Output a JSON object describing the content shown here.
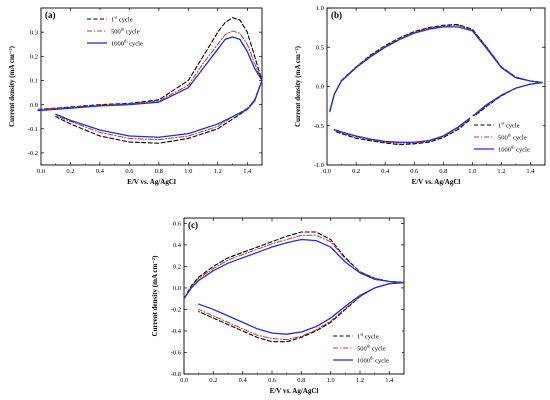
{
  "chart_data": [
    {
      "type": "line",
      "panel_label": "(a)",
      "xlabel": "E/V vs. Ag/AgCl",
      "ylabel": "Current density (mA cm⁻²)",
      "xlim": [
        0.0,
        1.5
      ],
      "ylim": [
        -0.25,
        0.4
      ],
      "xticks": [
        0.0,
        0.2,
        0.4,
        0.6,
        0.8,
        1.0,
        1.2,
        1.4
      ],
      "xtick_labels": [
        "0.0",
        "0.2",
        "0.4",
        "0.6",
        "0.8",
        "1.0",
        "1.2",
        "1.4"
      ],
      "yticks": [
        -0.2,
        -0.1,
        0.0,
        0.1,
        0.2,
        0.3
      ],
      "ytick_labels": [
        "-0.2",
        "-0.1",
        "0.0",
        "0.1",
        "0.2",
        "0.3"
      ],
      "grid": false,
      "legend_position": "top-left",
      "series": [
        {
          "name": "1st cycle",
          "legend_main": "1",
          "legend_sup": "st",
          "legend_tail": " cycle",
          "color": "#000000",
          "dash": "4,2.5",
          "stroke_width": 1.1,
          "x": [
            -0.02,
            0.2,
            0.4,
            0.6,
            0.8,
            1.0,
            1.1,
            1.2,
            1.25,
            1.3,
            1.35,
            1.4,
            1.45,
            1.5,
            1.45,
            1.4,
            1.3,
            1.2,
            1.0,
            0.8,
            0.6,
            0.4,
            0.2,
            0.1
          ],
          "y": [
            -0.02,
            -0.01,
            0.0,
            0.005,
            0.02,
            0.1,
            0.2,
            0.3,
            0.34,
            0.36,
            0.35,
            0.3,
            0.2,
            0.1,
            0.02,
            -0.02,
            -0.06,
            -0.1,
            -0.14,
            -0.16,
            -0.155,
            -0.13,
            -0.08,
            -0.05
          ]
        },
        {
          "name": "500th cycle",
          "legend_main": "500",
          "legend_sup": "th",
          "legend_tail": " cycle",
          "color": "#c0392b",
          "dash": "5,2,1.2,2",
          "stroke_width": 1.0,
          "x": [
            -0.02,
            0.2,
            0.4,
            0.6,
            0.8,
            1.0,
            1.1,
            1.2,
            1.25,
            1.3,
            1.35,
            1.4,
            1.45,
            1.5,
            1.45,
            1.4,
            1.3,
            1.2,
            1.0,
            0.8,
            0.6,
            0.4,
            0.2,
            0.1
          ],
          "y": [
            -0.02,
            -0.012,
            -0.002,
            0.003,
            0.015,
            0.08,
            0.17,
            0.25,
            0.29,
            0.305,
            0.295,
            0.25,
            0.17,
            0.1,
            0.02,
            -0.015,
            -0.05,
            -0.09,
            -0.13,
            -0.145,
            -0.14,
            -0.115,
            -0.07,
            -0.045
          ]
        },
        {
          "name": "1000th cycle",
          "legend_main": "1000",
          "legend_sup": "th",
          "legend_tail": " cycle",
          "color": "#1f2fd6",
          "dash": "",
          "stroke_width": 1.3,
          "x": [
            -0.02,
            0.2,
            0.4,
            0.6,
            0.8,
            1.0,
            1.1,
            1.2,
            1.25,
            1.3,
            1.35,
            1.4,
            1.45,
            1.5,
            1.45,
            1.4,
            1.3,
            1.2,
            1.0,
            0.8,
            0.6,
            0.4,
            0.2,
            0.1
          ],
          "y": [
            -0.025,
            -0.015,
            -0.005,
            0.0,
            0.01,
            0.07,
            0.15,
            0.23,
            0.27,
            0.28,
            0.27,
            0.22,
            0.15,
            0.1,
            0.015,
            -0.02,
            -0.05,
            -0.08,
            -0.12,
            -0.135,
            -0.13,
            -0.105,
            -0.065,
            -0.04
          ]
        }
      ]
    },
    {
      "type": "line",
      "panel_label": "(b)",
      "xlabel": "E/V vs. Ag/AgCl",
      "ylabel": "Current density (mA cm⁻²)",
      "xlim": [
        0.0,
        1.5
      ],
      "ylim": [
        -1.0,
        1.0
      ],
      "xticks": [
        0.0,
        0.2,
        0.4,
        0.6,
        0.8,
        1.0,
        1.2,
        1.4
      ],
      "xtick_labels": [
        "0.0",
        "0.2",
        "0.4",
        "0.6",
        "0.8",
        "1.0",
        "1.2",
        "1.4"
      ],
      "yticks": [
        -1.0,
        -0.5,
        0.0,
        0.5,
        1.0
      ],
      "ytick_labels": [
        "-1.0",
        "-0.5",
        "0.0",
        "0.5",
        "1.0"
      ],
      "grid": false,
      "legend_position": "bottom-right",
      "series": [
        {
          "name": "1st cycle",
          "legend_main": "1",
          "legend_sup": "st",
          "legend_tail": " cycle",
          "color": "#000000",
          "dash": "4,2.5",
          "stroke_width": 1.1,
          "x": [
            0.02,
            0.05,
            0.1,
            0.2,
            0.3,
            0.4,
            0.5,
            0.6,
            0.7,
            0.8,
            0.9,
            1.0,
            1.1,
            1.2,
            1.3,
            1.4,
            1.48,
            1.4,
            1.3,
            1.2,
            1.1,
            1.0,
            0.9,
            0.8,
            0.7,
            0.6,
            0.5,
            0.4,
            0.3,
            0.2,
            0.1,
            0.05
          ],
          "y": [
            -0.32,
            -0.1,
            0.08,
            0.25,
            0.4,
            0.52,
            0.62,
            0.7,
            0.75,
            0.78,
            0.79,
            0.73,
            0.5,
            0.25,
            0.12,
            0.07,
            0.05,
            0.03,
            -0.02,
            -0.12,
            -0.25,
            -0.4,
            -0.55,
            -0.65,
            -0.71,
            -0.73,
            -0.74,
            -0.72,
            -0.69,
            -0.66,
            -0.6,
            -0.57
          ]
        },
        {
          "name": "500th cycle",
          "legend_main": "500",
          "legend_sup": "th",
          "legend_tail": " cycle",
          "color": "#c0392b",
          "dash": "5,2,1.2,2",
          "stroke_width": 1.0,
          "x": [
            0.02,
            0.05,
            0.1,
            0.2,
            0.3,
            0.4,
            0.5,
            0.6,
            0.7,
            0.8,
            0.9,
            1.0,
            1.1,
            1.2,
            1.3,
            1.4,
            1.48,
            1.4,
            1.3,
            1.2,
            1.1,
            1.0,
            0.9,
            0.8,
            0.7,
            0.6,
            0.5,
            0.4,
            0.3,
            0.2,
            0.1,
            0.05
          ],
          "y": [
            -0.3,
            -0.09,
            0.08,
            0.25,
            0.39,
            0.51,
            0.61,
            0.69,
            0.74,
            0.77,
            0.78,
            0.72,
            0.5,
            0.25,
            0.12,
            0.07,
            0.05,
            0.03,
            -0.02,
            -0.12,
            -0.24,
            -0.39,
            -0.53,
            -0.64,
            -0.7,
            -0.72,
            -0.72,
            -0.71,
            -0.68,
            -0.64,
            -0.59,
            -0.56
          ]
        },
        {
          "name": "1000th cycle",
          "legend_main": "1000",
          "legend_sup": "th",
          "legend_tail": " cycle",
          "color": "#1f2fd6",
          "dash": "",
          "stroke_width": 1.3,
          "x": [
            0.02,
            0.05,
            0.1,
            0.2,
            0.3,
            0.4,
            0.5,
            0.6,
            0.7,
            0.8,
            0.9,
            1.0,
            1.1,
            1.2,
            1.3,
            1.4,
            1.48,
            1.4,
            1.3,
            1.2,
            1.1,
            1.0,
            0.9,
            0.8,
            0.7,
            0.6,
            0.5,
            0.4,
            0.3,
            0.2,
            0.1,
            0.05
          ],
          "y": [
            -0.31,
            -0.1,
            0.07,
            0.24,
            0.38,
            0.5,
            0.6,
            0.68,
            0.73,
            0.76,
            0.76,
            0.71,
            0.48,
            0.24,
            0.11,
            0.07,
            0.05,
            0.03,
            -0.02,
            -0.11,
            -0.23,
            -0.38,
            -0.52,
            -0.63,
            -0.69,
            -0.71,
            -0.71,
            -0.7,
            -0.67,
            -0.63,
            -0.58,
            -0.55
          ]
        }
      ]
    },
    {
      "type": "line",
      "panel_label": "(c)",
      "xlabel": "E/V vs. Ag/AgCl",
      "ylabel": "Current density (mA cm⁻²)",
      "xlim": [
        0.0,
        1.5
      ],
      "ylim": [
        -0.8,
        0.65
      ],
      "xticks": [
        0.0,
        0.2,
        0.4,
        0.6,
        0.8,
        1.0,
        1.2,
        1.4
      ],
      "xtick_labels": [
        "0.0",
        "0.2",
        "0.4",
        "0.6",
        "0.8",
        "1.0",
        "1.2",
        "1.4"
      ],
      "yticks": [
        -0.8,
        -0.6,
        -0.4,
        -0.2,
        0.0,
        0.2,
        0.4,
        0.6
      ],
      "ytick_labels": [
        "-0.8",
        "-0.6",
        "-0.4",
        "-0.2",
        "0.0",
        "0.2",
        "0.4",
        "0.6"
      ],
      "grid": false,
      "legend_position": "bottom-right",
      "series": [
        {
          "name": "1st cycle",
          "legend_main": "1",
          "legend_sup": "st",
          "legend_tail": " cycle",
          "color": "#000000",
          "dash": "4,2.5",
          "stroke_width": 1.1,
          "x": [
            0.0,
            0.05,
            0.1,
            0.2,
            0.3,
            0.4,
            0.5,
            0.6,
            0.7,
            0.8,
            0.9,
            1.0,
            1.1,
            1.2,
            1.3,
            1.4,
            1.5,
            1.4,
            1.3,
            1.2,
            1.1,
            1.0,
            0.9,
            0.8,
            0.7,
            0.6,
            0.5,
            0.4,
            0.3,
            0.2,
            0.1
          ],
          "y": [
            -0.1,
            0.02,
            0.1,
            0.2,
            0.28,
            0.33,
            0.38,
            0.43,
            0.48,
            0.52,
            0.52,
            0.45,
            0.28,
            0.15,
            0.09,
            0.06,
            0.05,
            0.04,
            0.0,
            -0.08,
            -0.2,
            -0.32,
            -0.4,
            -0.46,
            -0.5,
            -0.5,
            -0.46,
            -0.4,
            -0.34,
            -0.28,
            -0.22
          ]
        },
        {
          "name": "500th cycle",
          "legend_main": "500",
          "legend_sup": "th",
          "legend_tail": " cycle",
          "color": "#c0392b",
          "dash": "5,2,1.2,2",
          "stroke_width": 1.0,
          "x": [
            0.0,
            0.05,
            0.1,
            0.2,
            0.3,
            0.4,
            0.5,
            0.6,
            0.7,
            0.8,
            0.9,
            1.0,
            1.1,
            1.2,
            1.3,
            1.4,
            1.5,
            1.4,
            1.3,
            1.2,
            1.1,
            1.0,
            0.9,
            0.8,
            0.7,
            0.6,
            0.5,
            0.4,
            0.3,
            0.2,
            0.1
          ],
          "y": [
            -0.1,
            0.01,
            0.09,
            0.18,
            0.26,
            0.31,
            0.36,
            0.41,
            0.45,
            0.49,
            0.49,
            0.43,
            0.27,
            0.15,
            0.09,
            0.06,
            0.05,
            0.04,
            0.0,
            -0.08,
            -0.19,
            -0.31,
            -0.39,
            -0.45,
            -0.48,
            -0.47,
            -0.44,
            -0.38,
            -0.32,
            -0.26,
            -0.2
          ]
        },
        {
          "name": "1000th cycle",
          "legend_main": "1000",
          "legend_sup": "th",
          "legend_tail": " cycle",
          "color": "#1f2fd6",
          "dash": "",
          "stroke_width": 1.3,
          "x": [
            0.0,
            0.05,
            0.1,
            0.2,
            0.3,
            0.4,
            0.5,
            0.6,
            0.7,
            0.8,
            0.9,
            1.0,
            1.1,
            1.2,
            1.3,
            1.4,
            1.5,
            1.4,
            1.3,
            1.2,
            1.1,
            1.0,
            0.9,
            0.8,
            0.7,
            0.6,
            0.5,
            0.4,
            0.3,
            0.2,
            0.1
          ],
          "y": [
            -0.1,
            0.0,
            0.07,
            0.16,
            0.23,
            0.28,
            0.33,
            0.38,
            0.42,
            0.45,
            0.44,
            0.38,
            0.24,
            0.14,
            0.08,
            0.06,
            0.05,
            0.04,
            0.0,
            -0.07,
            -0.17,
            -0.28,
            -0.36,
            -0.41,
            -0.43,
            -0.42,
            -0.38,
            -0.32,
            -0.26,
            -0.2,
            -0.15
          ]
        }
      ]
    }
  ]
}
